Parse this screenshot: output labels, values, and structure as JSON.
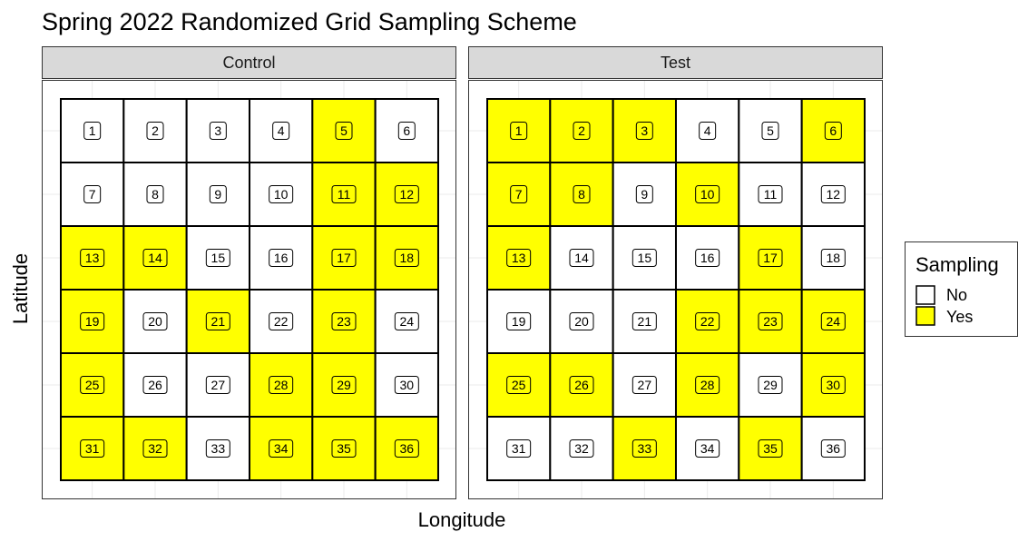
{
  "chart_data": {
    "type": "heatmap",
    "title": "Spring 2022 Randomized Grid Sampling Scheme",
    "xlabel": "Longitude",
    "ylabel": "Latitude",
    "grid": true,
    "legend": {
      "title": "Sampling",
      "placement": "right",
      "entries": [
        {
          "label": "No",
          "color": "#ffffff"
        },
        {
          "label": "Yes",
          "color": "#ffff00"
        }
      ]
    },
    "rows": 6,
    "cols": 6,
    "panels": [
      {
        "name": "Control",
        "sampled": [
          5,
          11,
          12,
          13,
          14,
          17,
          18,
          19,
          21,
          23,
          25,
          28,
          29,
          31,
          32,
          34,
          35,
          36
        ]
      },
      {
        "name": "Test",
        "sampled": [
          1,
          2,
          3,
          6,
          7,
          8,
          10,
          13,
          17,
          22,
          23,
          24,
          25,
          26,
          28,
          30,
          33,
          35
        ]
      }
    ]
  },
  "colors": {
    "yes": "#ffff00",
    "no": "#ffffff",
    "strip": "#d9d9d9",
    "panel_border": "#333333",
    "gridline": "#ebebeb"
  }
}
